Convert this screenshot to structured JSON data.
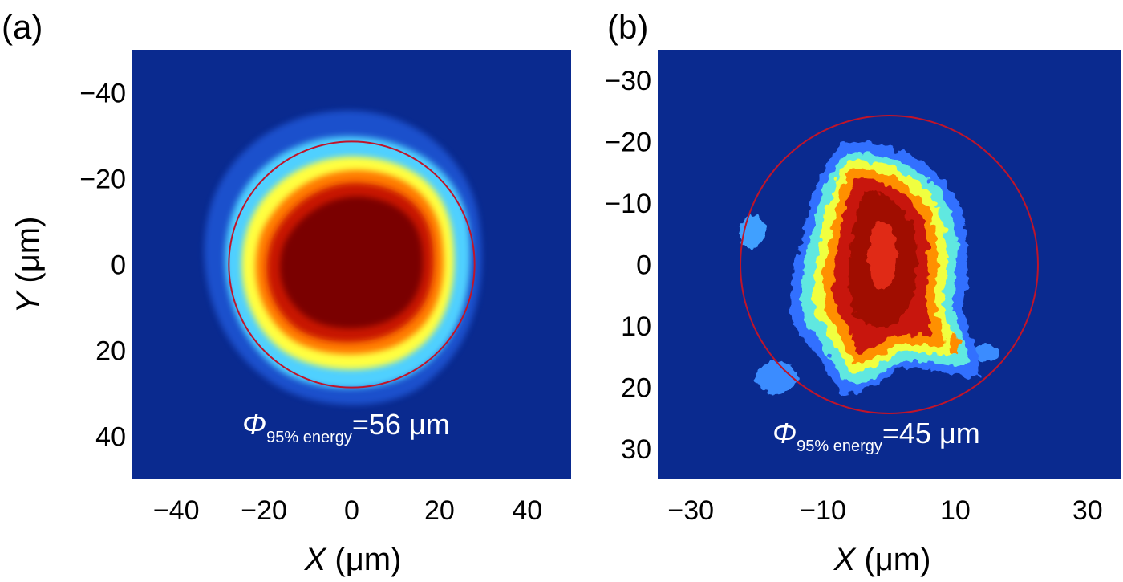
{
  "chart_data": [
    {
      "type": "heatmap",
      "panel_label": "(a)",
      "xlabel_var": "X",
      "xlabel_unit": " (μm)",
      "ylabel_var": "Y",
      "ylabel_unit": " (μm)",
      "xlim": [
        -50,
        50
      ],
      "ylim": [
        -50,
        50
      ],
      "y_inverted": true,
      "xticks": [
        -40,
        -20,
        0,
        20,
        40
      ],
      "xtick_labels": [
        "−40",
        "−20",
        "0",
        "20",
        "40"
      ],
      "yticks": [
        -40,
        -20,
        0,
        20,
        40
      ],
      "ytick_labels": [
        "−40",
        "−20",
        "0",
        "20",
        "40"
      ],
      "colormap": "jet",
      "background_color": "#0a2a8f",
      "energy_circle": {
        "center": [
          0,
          0
        ],
        "radius_um": 28,
        "color": "#c0142a"
      },
      "spot_center": [
        -2,
        0
      ],
      "annotation": {
        "symbol": "Φ",
        "subscript": "95% energy",
        "value": "=56 μm"
      }
    },
    {
      "type": "heatmap",
      "panel_label": "(b)",
      "xlabel_var": "X",
      "xlabel_unit": " (μm)",
      "xlim": [
        -35,
        35
      ],
      "ylim": [
        -35,
        35
      ],
      "y_inverted": true,
      "xticks": [
        -30,
        -10,
        10,
        30
      ],
      "xtick_labels": [
        "−30",
        "−10",
        "10",
        "30"
      ],
      "yticks": [
        -30,
        -20,
        -10,
        0,
        10,
        20,
        30
      ],
      "ytick_labels": [
        "−30",
        "−20",
        "−10",
        "0",
        "10",
        "20",
        "30"
      ],
      "colormap": "jet",
      "background_color": "#0a2a8f",
      "energy_circle": {
        "center": [
          0,
          0
        ],
        "radius_um": 22.5,
        "color": "#c0142a"
      },
      "spot_center": [
        -1,
        0
      ],
      "annotation": {
        "symbol": "Φ",
        "subscript": "95% energy",
        "value": "=45 μm"
      }
    }
  ]
}
